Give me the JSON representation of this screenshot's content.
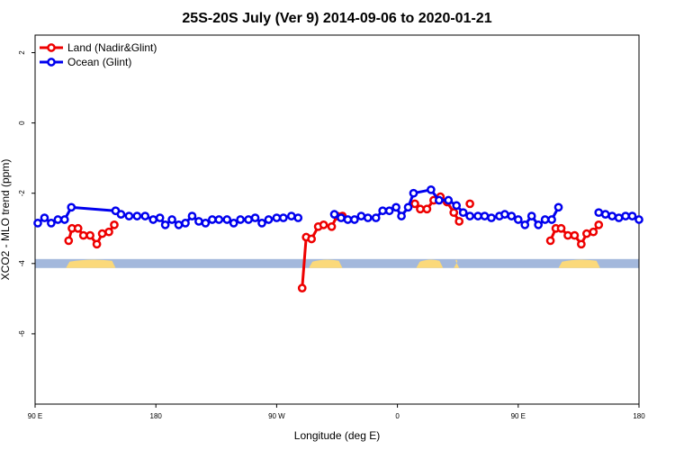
{
  "chart_data": {
    "type": "line",
    "title": "25S-20S July (Ver 9)   2014-09-06 to 2020-01-21",
    "xlabel": "Longitude (deg E)",
    "ylabel": "XCO2 - MLO trend (ppm)",
    "xlim": [
      90,
      540
    ],
    "ylim": [
      -8,
      2.5
    ],
    "x_ticks": [
      {
        "value": 90,
        "label": "90 E"
      },
      {
        "value": 180,
        "label": "180"
      },
      {
        "value": 270,
        "label": "90 W"
      },
      {
        "value": 360,
        "label": "0"
      },
      {
        "value": 450,
        "label": "90 E"
      },
      {
        "value": 540,
        "label": "180"
      }
    ],
    "y_ticks": [
      {
        "value": 2,
        "label": "2"
      },
      {
        "value": 0,
        "label": "0"
      },
      {
        "value": -2,
        "label": "-2"
      },
      {
        "value": -4,
        "label": "-4"
      },
      {
        "value": -6,
        "label": "-6"
      }
    ],
    "legend": {
      "position": "top-left"
    },
    "series": [
      {
        "name": "Land (Nadir&Glint)",
        "color": "#ee0000",
        "segments": [
          [
            [
              115,
              -3.35
            ],
            [
              117.5,
              -3.0
            ],
            [
              122,
              -3.0
            ],
            [
              126,
              -3.2
            ],
            [
              131,
              -3.2
            ],
            [
              136,
              -3.45
            ],
            [
              140,
              -3.15
            ],
            [
              145,
              -3.1
            ],
            [
              149,
              -2.9
            ]
          ],
          [
            [
              289,
              -4.7
            ],
            [
              292,
              -3.25
            ],
            [
              296,
              -3.3
            ],
            [
              301,
              -2.95
            ],
            [
              305,
              -2.9
            ],
            [
              311,
              -2.95
            ],
            [
              315,
              -2.65
            ],
            [
              319,
              -2.65
            ]
          ],
          [
            [
              373,
              -2.3
            ],
            [
              377,
              -2.45
            ],
            [
              382,
              -2.45
            ],
            [
              387,
              -2.2
            ],
            [
              392,
              -2.1
            ],
            [
              397,
              -2.25
            ],
            [
              402,
              -2.55
            ],
            [
              406,
              -2.8
            ]
          ],
          [
            [
              414,
              -2.3
            ]
          ],
          [
            [
              474,
              -3.35
            ],
            [
              478,
              -3.0
            ],
            [
              482,
              -3.0
            ],
            [
              487,
              -3.2
            ],
            [
              492,
              -3.2
            ],
            [
              497,
              -3.45
            ],
            [
              501,
              -3.15
            ],
            [
              506,
              -3.1
            ],
            [
              510,
              -2.9
            ]
          ]
        ]
      },
      {
        "name": "Ocean (Glint)",
        "color": "#0000ee",
        "segments": [
          [
            [
              92,
              -2.85
            ],
            [
              97,
              -2.7
            ],
            [
              102,
              -2.85
            ],
            [
              107,
              -2.75
            ],
            [
              112,
              -2.75
            ],
            [
              117,
              -2.4
            ],
            [
              150,
              -2.5
            ],
            [
              154,
              -2.6
            ],
            [
              160,
              -2.65
            ],
            [
              166,
              -2.65
            ],
            [
              172,
              -2.65
            ],
            [
              178,
              -2.75
            ],
            [
              183,
              -2.7
            ],
            [
              187,
              -2.9
            ],
            [
              192,
              -2.75
            ],
            [
              197,
              -2.9
            ],
            [
              202,
              -2.85
            ],
            [
              207,
              -2.65
            ],
            [
              212,
              -2.8
            ],
            [
              217,
              -2.85
            ],
            [
              222,
              -2.75
            ],
            [
              227,
              -2.75
            ],
            [
              233,
              -2.75
            ],
            [
              238,
              -2.85
            ],
            [
              243,
              -2.75
            ],
            [
              249,
              -2.75
            ],
            [
              254,
              -2.7
            ],
            [
              259,
              -2.85
            ],
            [
              264,
              -2.75
            ],
            [
              270,
              -2.7
            ],
            [
              275,
              -2.7
            ],
            [
              281,
              -2.65
            ],
            [
              286,
              -2.7
            ]
          ],
          [
            [
              313,
              -2.6
            ],
            [
              318,
              -2.7
            ],
            [
              323,
              -2.75
            ],
            [
              328,
              -2.75
            ],
            [
              333,
              -2.65
            ],
            [
              338,
              -2.7
            ],
            [
              344,
              -2.7
            ],
            [
              349,
              -2.5
            ],
            [
              354,
              -2.5
            ],
            [
              359,
              -2.4
            ],
            [
              363,
              -2.65
            ],
            [
              368,
              -2.4
            ],
            [
              372,
              -2.0
            ],
            [
              385,
              -1.9
            ],
            [
              391,
              -2.2
            ],
            [
              398,
              -2.2
            ],
            [
              404,
              -2.35
            ],
            [
              409,
              -2.55
            ],
            [
              414,
              -2.65
            ],
            [
              420,
              -2.65
            ],
            [
              425,
              -2.65
            ],
            [
              430,
              -2.7
            ],
            [
              436,
              -2.65
            ],
            [
              440,
              -2.6
            ],
            [
              445,
              -2.65
            ],
            [
              450,
              -2.75
            ],
            [
              455,
              -2.9
            ],
            [
              460,
              -2.65
            ],
            [
              465,
              -2.9
            ],
            [
              470,
              -2.75
            ],
            [
              475,
              -2.75
            ],
            [
              480,
              -2.4
            ]
          ],
          [
            [
              510,
              -2.55
            ],
            [
              515,
              -2.6
            ],
            [
              520,
              -2.65
            ],
            [
              525,
              -2.7
            ],
            [
              530,
              -2.65
            ],
            [
              535,
              -2.65
            ],
            [
              540,
              -2.75
            ]
          ]
        ]
      }
    ],
    "landmask": {
      "band_y": -4,
      "ocean_color": "#a3b8dc",
      "land_color": "#fbd97a",
      "land_ranges": [
        [
          113,
          150
        ],
        [
          294,
          319
        ],
        [
          374,
          394
        ],
        [
          402,
          406
        ],
        [
          480,
          511
        ]
      ]
    }
  }
}
